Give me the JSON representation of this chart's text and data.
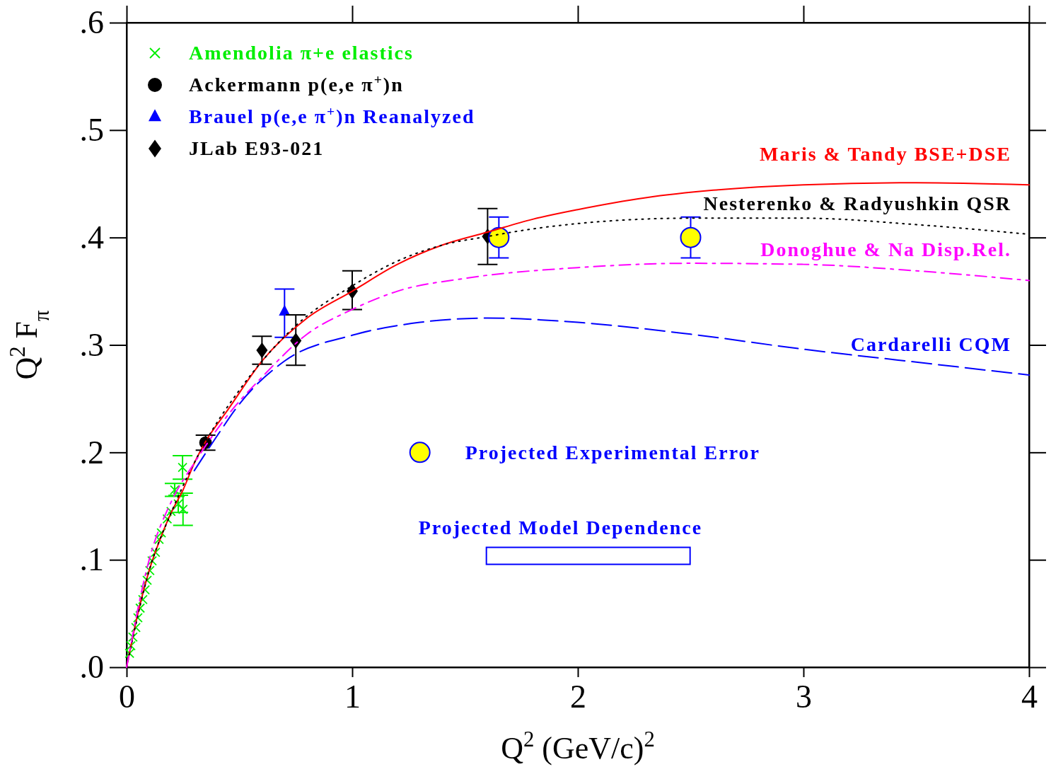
{
  "chart_data": {
    "type": "scatter",
    "xlabel": "Q$^{2}$ (GeV/c)$^{2}$",
    "ylabel": "Q$^{2}$ F$_{π}$",
    "xlim": [
      0,
      4
    ],
    "xticks": [
      0,
      1,
      2,
      3,
      4
    ],
    "ylim": [
      0,
      0.6
    ],
    "yticks": [
      {
        "value": 0,
        "label": ".0"
      },
      {
        "value": 0.1,
        "label": ".1"
      },
      {
        "value": 0.2,
        "label": ".2"
      },
      {
        "value": 0.3,
        "label": ".3"
      },
      {
        "value": 0.4,
        "label": ".4"
      },
      {
        "value": 0.5,
        "label": ".5"
      },
      {
        "value": 0.6,
        "label": ".6"
      }
    ],
    "grid": false,
    "legend": "top left",
    "annotations": [
      "Projected Model Dependence"
    ],
    "series": [
      {
        "name": "Amendolia π+e elastics",
        "marker": "cross",
        "color": "#00ee00",
        "x": [
          0.013,
          0.019,
          0.028,
          0.041,
          0.05,
          0.06,
          0.072,
          0.082,
          0.091,
          0.103,
          0.113,
          0.128,
          0.144,
          0.154,
          0.18,
          0.197,
          0.213,
          0.229,
          0.248,
          0.25
        ],
        "values": [
          0.013,
          0.02,
          0.028,
          0.037,
          0.046,
          0.055,
          0.063,
          0.072,
          0.081,
          0.09,
          0.099,
          0.107,
          0.119,
          0.125,
          0.138,
          0.145,
          0.165,
          0.152,
          0.186,
          0.147
        ],
        "errors": [
          null,
          null,
          null,
          null,
          null,
          null,
          null,
          null,
          null,
          null,
          null,
          null,
          null,
          null,
          null,
          null,
          0.006,
          0.008,
          0.011,
          0.015
        ]
      },
      {
        "name": "Ackermann p(e,e π$^{+}$)n",
        "marker": "circle",
        "color": "#000000",
        "x": [
          0.35
        ],
        "values": [
          0.209
        ],
        "errors": [
          0.007
        ]
      },
      {
        "name": "Brauel p(e,e π$^{+}$)n Reanalyzed",
        "marker": "triangle",
        "color": "#0000ff",
        "x": [
          0.7
        ],
        "values": [
          0.331
        ],
        "errors": [
          [
            0.307,
            0.352
          ]
        ]
      },
      {
        "name": "JLab E93-021",
        "marker": "diamond",
        "color": "#000000",
        "x": [
          0.6,
          0.75,
          1.0,
          1.6
        ],
        "values": [
          0.295,
          0.304,
          0.35,
          0.401
        ],
        "errors": [
          [
            0.282,
            0.308
          ],
          [
            0.281,
            0.328
          ],
          [
            0.333,
            0.369
          ],
          [
            0.375,
            0.427
          ]
        ]
      },
      {
        "name": "Projected Experimental Error",
        "marker": "circle",
        "color": "#ffff00",
        "x": [
          1.65,
          2.5
        ],
        "values": [
          0.4,
          0.4
        ],
        "errors": [
          0.019,
          0.019
        ]
      },
      {
        "name": "Maris & Tandy BSE+DSE",
        "type": "line",
        "line_style": "solid",
        "color": "#ff0000",
        "x": [
          0,
          0.05,
          0.1,
          0.15,
          0.2,
          0.25,
          0.3,
          0.35,
          0.45,
          0.6,
          0.8,
          1.0,
          1.2,
          1.4,
          1.6,
          1.8,
          2.0,
          2.3,
          2.6,
          3.0,
          3.5,
          4.0
        ],
        "values": [
          0,
          0.05,
          0.09,
          0.12,
          0.145,
          0.165,
          0.19,
          0.21,
          0.24,
          0.285,
          0.325,
          0.35,
          0.375,
          0.393,
          0.405,
          0.417,
          0.426,
          0.437,
          0.444,
          0.449,
          0.451,
          0.449
        ]
      },
      {
        "name": "Nesterenko & Radyushkin QSR",
        "type": "line",
        "line_style": "dotted",
        "color": "#000000",
        "x": [
          0,
          0.1,
          0.2,
          0.35,
          0.5,
          0.75,
          1.0,
          1.2,
          1.4,
          1.6,
          1.8,
          2.0,
          2.5,
          3.0,
          3.5,
          4.0
        ],
        "values": [
          0,
          0.09,
          0.145,
          0.21,
          0.258,
          0.318,
          0.355,
          0.378,
          0.393,
          0.401,
          0.408,
          0.413,
          0.418,
          0.418,
          0.412,
          0.403
        ]
      },
      {
        "name": "Donoghue & Na Disp.Rel.",
        "type": "line",
        "line_style": "dashdot",
        "color": "#ff00ff",
        "x": [
          0,
          0.1,
          0.2,
          0.3,
          0.45,
          0.6,
          0.8,
          1.0,
          1.2,
          1.5,
          2.0,
          2.5,
          3.0,
          3.5,
          4.0
        ],
        "values": [
          0,
          0.1,
          0.155,
          0.19,
          0.235,
          0.27,
          0.31,
          0.333,
          0.35,
          0.362,
          0.372,
          0.376,
          0.375,
          0.369,
          0.36
        ]
      },
      {
        "name": "Cardarelli CQM",
        "type": "line",
        "line_style": "dashed",
        "color": "#0000ff",
        "x": [
          0.3,
          0.4,
          0.5,
          0.7,
          1.0,
          1.3,
          1.6,
          2.0,
          2.5,
          3.0,
          3.5,
          4.0
        ],
        "values": [
          0.183,
          0.215,
          0.245,
          0.285,
          0.309,
          0.321,
          0.325,
          0.321,
          0.31,
          0.296,
          0.284,
          0.272
        ]
      }
    ]
  }
}
